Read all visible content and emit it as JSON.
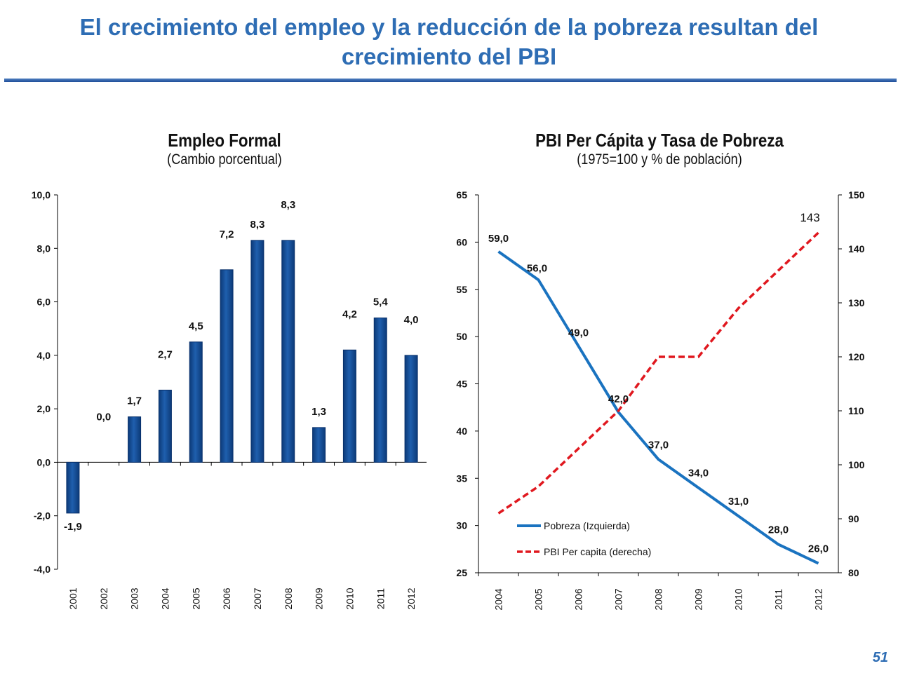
{
  "slide": {
    "title_line1": "El crecimiento del empleo y  la reducción de la pobreza resultan del",
    "title_line2": "crecimiento del PBI",
    "page_number": "51"
  },
  "chart_data": [
    {
      "type": "bar",
      "title": "Empleo Formal",
      "subtitle": "(Cambio porcentual)",
      "categories": [
        "2001",
        "2002",
        "2003",
        "2004",
        "2005",
        "2006",
        "2007",
        "2008",
        "2009",
        "2010",
        "2011",
        "2012"
      ],
      "values": [
        -1.9,
        0.0,
        1.7,
        2.7,
        4.5,
        7.2,
        8.3,
        8.3,
        1.3,
        4.2,
        5.4,
        4.0
      ],
      "data_labels": [
        "-1,9",
        "0,0",
        "1,7",
        "2,7",
        "4,5",
        "7,2",
        "8,3",
        "8,3",
        "1,3",
        "4,2",
        "5,4",
        "4,0"
      ],
      "ylim": [
        -4,
        10
      ],
      "y_ticks": [
        "-4,0",
        "-2,0",
        "0,0",
        "2,0",
        "4,0",
        "6,0",
        "8,0",
        "10,0"
      ],
      "bar_color": "#1f5fae",
      "grid": false
    },
    {
      "type": "line",
      "title": "PBI Per Cápita y Tasa de Pobreza",
      "subtitle": "(1975=100 y % de población)",
      "x": [
        "2004",
        "2005",
        "2006",
        "2007",
        "2008",
        "2009",
        "2010",
        "2011",
        "2012"
      ],
      "series": [
        {
          "name": "Pobreza (Izquierda)",
          "axis": "left",
          "values": [
            59,
            56,
            49,
            42,
            37,
            34,
            31,
            28,
            26
          ],
          "data_labels": [
            "59,0",
            "56,0",
            "49,0",
            "42,0",
            "37,0",
            "34,0",
            "31,0",
            "28,0",
            "26,0"
          ],
          "color": "#1a73c0",
          "style": "solid"
        },
        {
          "name": "PBI Per capita (derecha)",
          "axis": "right",
          "values": [
            91,
            96,
            103,
            110,
            120,
            120,
            129,
            136,
            143
          ],
          "end_label": "143",
          "color": "#e0181f",
          "style": "dashed"
        }
      ],
      "y_left_lim": [
        25,
        65
      ],
      "y_left_ticks": [
        "25",
        "30",
        "35",
        "40",
        "45",
        "50",
        "55",
        "60",
        "65"
      ],
      "y_right_lim": [
        80,
        150
      ],
      "y_right_ticks": [
        "80",
        "90",
        "100",
        "110",
        "120",
        "130",
        "140",
        "150"
      ],
      "legend_position": "bottom-left",
      "grid": false
    }
  ]
}
